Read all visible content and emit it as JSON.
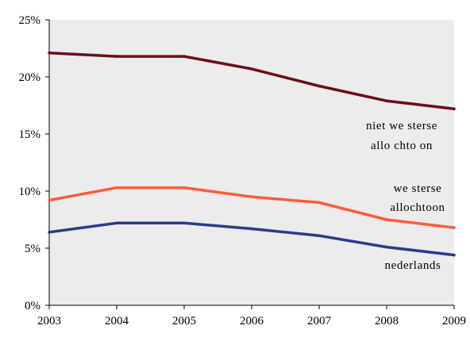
{
  "chart_data": {
    "type": "line",
    "title": "",
    "xlabel": "",
    "ylabel": "",
    "x": [
      "2003",
      "2004",
      "2005",
      "2006",
      "2007",
      "2008",
      "2009"
    ],
    "ylim": [
      0,
      25
    ],
    "yticks": [
      0,
      5,
      10,
      15,
      20,
      25
    ],
    "ytick_labels": [
      "0%",
      "5%",
      "10%",
      "15%",
      "20%",
      "25%"
    ],
    "grid": false,
    "series": [
      {
        "name": "niet westerse allochtoon",
        "label_lines": [
          "niet we sterse",
          "allo chto on"
        ],
        "color": "#6b0f1a",
        "values": [
          22.1,
          21.8,
          21.8,
          20.7,
          19.2,
          17.9,
          17.2
        ]
      },
      {
        "name": "westerse allochtoon",
        "label_lines": [
          "we sterse",
          "allochtoon"
        ],
        "color": "#ff5a3c",
        "values": [
          9.2,
          10.3,
          10.3,
          9.5,
          9.0,
          7.5,
          6.8
        ]
      },
      {
        "name": "nederlands",
        "label_lines": [
          "nederlands"
        ],
        "color": "#2e3a87",
        "values": [
          6.4,
          7.2,
          7.2,
          6.7,
          6.1,
          5.1,
          4.4
        ]
      }
    ]
  }
}
